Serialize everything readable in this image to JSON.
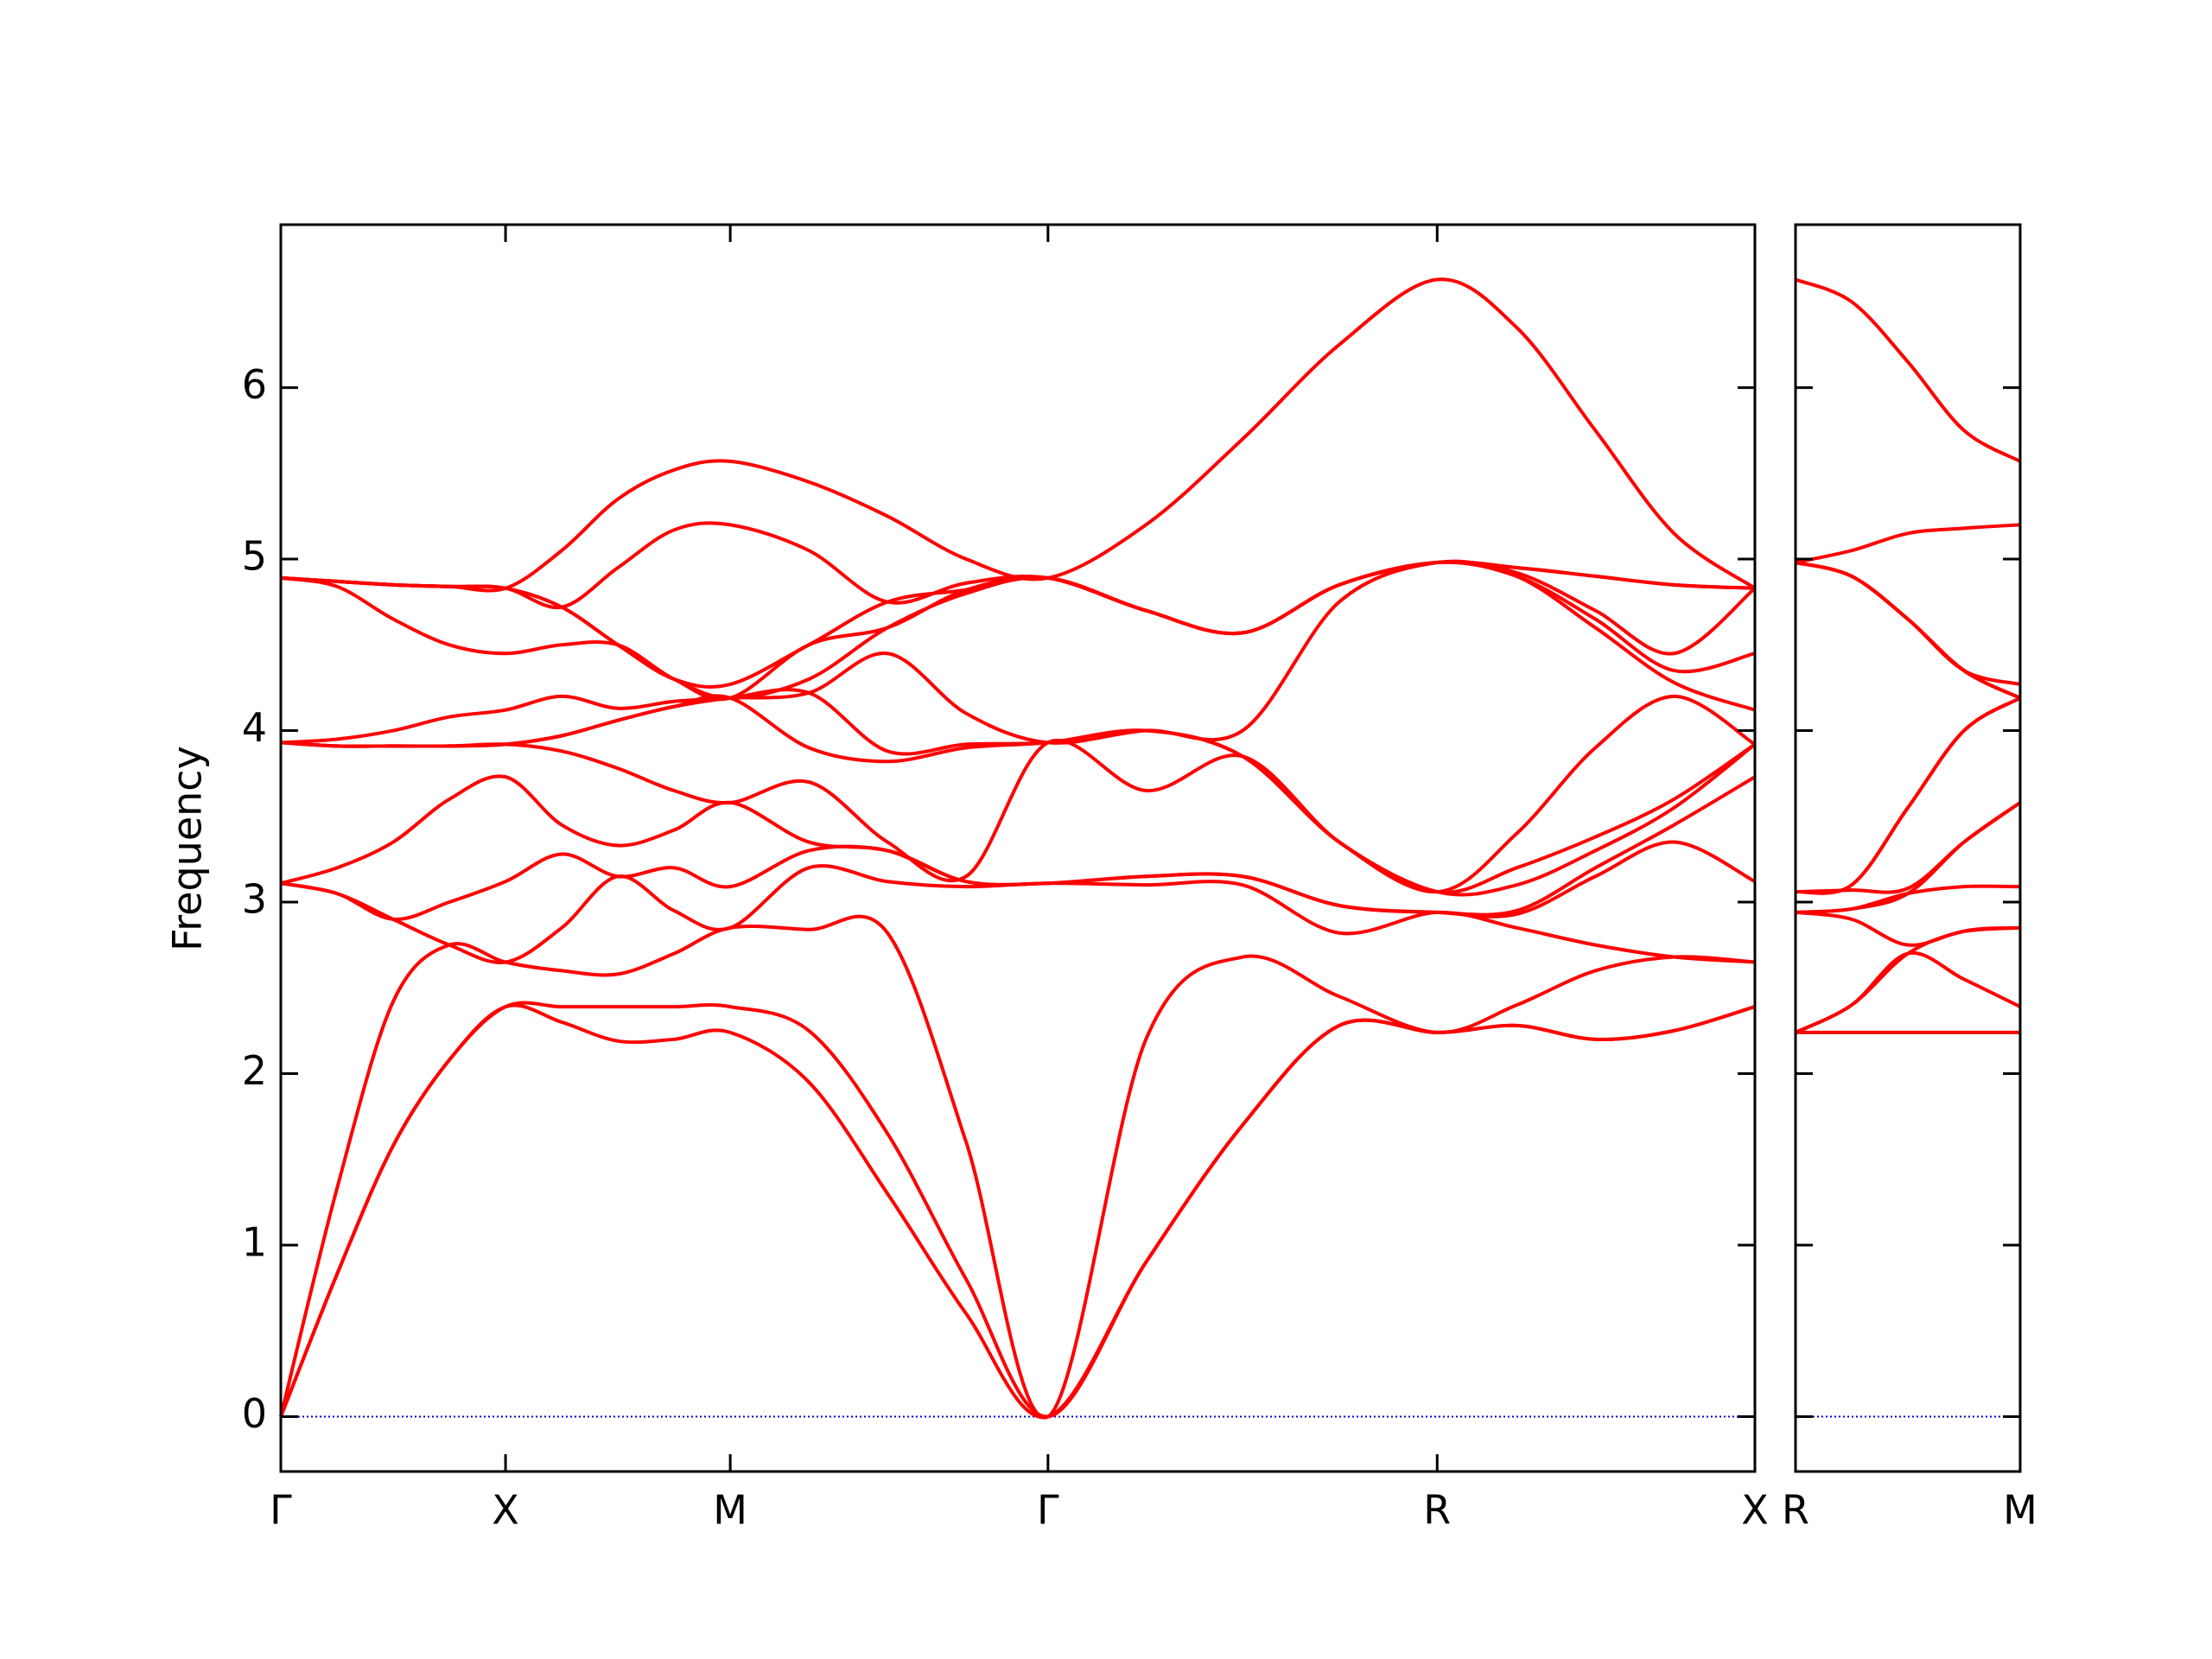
{
  "chart_data": [
    {
      "type": "line",
      "y_label": "Frequency",
      "x": [
        0,
        0.25,
        0.5,
        0.75,
        1,
        1.25,
        1.5,
        1.75,
        2,
        2.35,
        2.7,
        3.05,
        3.414,
        3.85,
        4.28,
        4.71,
        5.146,
        5.5,
        5.85,
        6.2,
        6.56
      ],
      "xlim": [
        0,
        6.56
      ],
      "xticks": [
        {
          "value": 0,
          "label": "Γ"
        },
        {
          "value": 1,
          "label": "X"
        },
        {
          "value": 2,
          "label": "M"
        },
        {
          "value": 3.414,
          "label": "Γ"
        },
        {
          "value": 5.146,
          "label": "R"
        },
        {
          "value": 6.56,
          "label": "X"
        }
      ],
      "ylim": [
        -0.32,
        6.95
      ],
      "yticks": [
        0,
        1,
        2,
        3,
        4,
        5,
        6
      ],
      "hline": {
        "y": 0,
        "color": "#0000cc"
      },
      "series": [
        {
          "color": "#ff0000",
          "values": [
            0,
            0.83,
            1.58,
            2.08,
            2.39,
            2.3,
            2.19,
            2.2,
            2.24,
            1.95,
            1.3,
            0.6,
            0,
            0.9,
            1.7,
            2.28,
            2.24,
            2.28,
            2.2,
            2.25,
            2.39
          ]
        },
        {
          "color": "#ff0000",
          "values": [
            0,
            0.83,
            1.58,
            2.08,
            2.39,
            2.39,
            2.39,
            2.39,
            2.39,
            2.25,
            1.65,
            0.8,
            0,
            0.9,
            1.7,
            2.28,
            2.24,
            2.28,
            2.2,
            2.25,
            2.39
          ]
        },
        {
          "color": "#ff0000",
          "values": [
            0,
            1.33,
            2.42,
            2.75,
            2.65,
            2.6,
            2.58,
            2.7,
            2.85,
            2.84,
            2.82,
            1.6,
            0,
            2.2,
            2.68,
            2.45,
            2.24,
            2.4,
            2.6,
            2.68,
            2.65
          ]
        },
        {
          "color": "#ff0000",
          "values": [
            3.11,
            3.05,
            2.9,
            2.75,
            2.65,
            2.85,
            3.15,
            2.95,
            2.85,
            3.2,
            3.12,
            3.09,
            3.11,
            3.1,
            3.1,
            2.82,
            2.94,
            2.85,
            2.75,
            2.68,
            2.65
          ]
        },
        {
          "color": "#ff0000",
          "values": [
            3.11,
            3.05,
            2.9,
            3.0,
            3.12,
            3.28,
            3.15,
            3.2,
            3.09,
            3.3,
            3.3,
            3.12,
            3.11,
            3.15,
            3.15,
            2.98,
            2.94,
            2.93,
            3.15,
            3.35,
            3.12
          ]
        },
        {
          "color": "#ff0000",
          "values": [
            3.11,
            3.2,
            3.35,
            3.6,
            3.73,
            3.45,
            3.33,
            3.42,
            3.58,
            3.35,
            3.3,
            3.12,
            3.11,
            3.15,
            3.15,
            2.98,
            2.94,
            2.95,
            3.2,
            3.45,
            3.73
          ]
        },
        {
          "color": "#ff0000",
          "values": [
            3.93,
            3.91,
            3.91,
            3.91,
            3.92,
            3.88,
            3.78,
            3.65,
            3.58,
            3.7,
            3.35,
            3.15,
            3.93,
            3.65,
            3.85,
            3.35,
            3.06,
            3.1,
            3.3,
            3.55,
            3.92
          ]
        },
        {
          "color": "#ff0000",
          "values": [
            3.93,
            3.91,
            3.91,
            3.91,
            3.92,
            3.97,
            4.06,
            4.14,
            4.19,
            3.9,
            3.82,
            3.9,
            3.93,
            4.0,
            3.85,
            3.35,
            3.06,
            3.2,
            3.38,
            3.6,
            3.92
          ]
        },
        {
          "color": "#ff0000",
          "values": [
            3.93,
            3.91,
            3.91,
            3.91,
            3.92,
            3.97,
            4.06,
            4.14,
            4.19,
            4.22,
            3.88,
            3.92,
            3.93,
            4.0,
            3.85,
            3.35,
            3.06,
            3.4,
            3.9,
            4.2,
            3.92
          ]
        },
        {
          "color": "#ff0000",
          "values": [
            3.93,
            3.95,
            4.0,
            4.08,
            4.12,
            4.2,
            4.13,
            4.17,
            4.19,
            4.22,
            4.45,
            4.1,
            3.93,
            4.0,
            4.0,
            4.75,
            4.98,
            4.9,
            4.6,
            4.28,
            4.12
          ]
        },
        {
          "color": "#ff0000",
          "values": [
            4.89,
            4.84,
            4.65,
            4.5,
            4.45,
            4.5,
            4.5,
            4.3,
            4.19,
            4.3,
            4.6,
            4.8,
            4.89,
            4.7,
            4.57,
            4.85,
            4.98,
            4.9,
            4.65,
            4.35,
            4.45
          ]
        },
        {
          "color": "#ff0000",
          "values": [
            4.89,
            4.87,
            4.85,
            4.84,
            4.83,
            4.72,
            4.5,
            4.3,
            4.19,
            4.5,
            4.6,
            4.82,
            4.89,
            4.7,
            4.57,
            4.85,
            4.98,
            4.92,
            4.7,
            4.45,
            4.83
          ]
        },
        {
          "color": "#ff0000",
          "values": [
            4.89,
            4.87,
            4.85,
            4.84,
            4.83,
            4.72,
            4.5,
            4.3,
            4.27,
            4.5,
            4.75,
            4.82,
            4.89,
            4.7,
            4.57,
            4.85,
            4.98,
            4.95,
            4.9,
            4.85,
            4.83
          ]
        },
        {
          "color": "#ff0000",
          "values": [
            4.89,
            4.87,
            4.85,
            4.84,
            4.83,
            4.72,
            4.95,
            5.17,
            5.2,
            5.05,
            4.75,
            4.86,
            4.89,
            4.7,
            4.57,
            4.85,
            4.98,
            4.95,
            4.9,
            4.85,
            4.83
          ]
        },
        {
          "color": "#ff0000",
          "values": [
            4.89,
            4.87,
            4.85,
            4.84,
            4.83,
            5.05,
            5.35,
            5.52,
            5.57,
            5.45,
            5.25,
            5.0,
            4.89,
            5.2,
            5.7,
            6.25,
            6.63,
            6.35,
            5.75,
            5.15,
            4.83
          ]
        }
      ]
    },
    {
      "type": "line",
      "x": [
        0,
        0.25,
        0.5,
        0.75,
        1
      ],
      "xlim": [
        0,
        1
      ],
      "xticks": [
        {
          "value": 0,
          "label": "R"
        },
        {
          "value": 1,
          "label": "M"
        }
      ],
      "ylim": [
        -0.32,
        6.95
      ],
      "hline": {
        "y": 0,
        "color": "#0000cc"
      },
      "series": [
        {
          "color": "#ff0000",
          "values": [
            2.24,
            2.24,
            2.24,
            2.24,
            2.24
          ]
        },
        {
          "color": "#ff0000",
          "values": [
            2.24,
            2.4,
            2.7,
            2.55,
            2.39
          ]
        },
        {
          "color": "#ff0000",
          "values": [
            2.24,
            2.4,
            2.7,
            2.83,
            2.85
          ]
        },
        {
          "color": "#ff0000",
          "values": [
            2.94,
            2.9,
            2.75,
            2.83,
            2.85
          ]
        },
        {
          "color": "#ff0000",
          "values": [
            2.94,
            2.96,
            3.05,
            3.09,
            3.09
          ]
        },
        {
          "color": "#ff0000",
          "values": [
            2.94,
            2.96,
            3.05,
            3.35,
            3.58
          ]
        },
        {
          "color": "#ff0000",
          "values": [
            3.06,
            3.07,
            3.08,
            3.35,
            3.58
          ]
        },
        {
          "color": "#ff0000",
          "values": [
            3.06,
            3.1,
            3.55,
            4.0,
            4.19
          ]
        },
        {
          "color": "#ff0000",
          "values": [
            3.06,
            3.1,
            3.55,
            4.0,
            4.19
          ]
        },
        {
          "color": "#ff0000",
          "values": [
            4.98,
            4.9,
            4.65,
            4.35,
            4.19
          ]
        },
        {
          "color": "#ff0000",
          "values": [
            4.98,
            4.9,
            4.65,
            4.35,
            4.19
          ]
        },
        {
          "color": "#ff0000",
          "values": [
            4.98,
            4.9,
            4.65,
            4.35,
            4.19
          ]
        },
        {
          "color": "#ff0000",
          "values": [
            4.98,
            4.9,
            4.65,
            4.35,
            4.27
          ]
        },
        {
          "color": "#ff0000",
          "values": [
            4.98,
            5.05,
            5.15,
            5.18,
            5.2
          ]
        },
        {
          "color": "#ff0000",
          "values": [
            6.63,
            6.5,
            6.15,
            5.75,
            5.57
          ]
        }
      ]
    }
  ]
}
